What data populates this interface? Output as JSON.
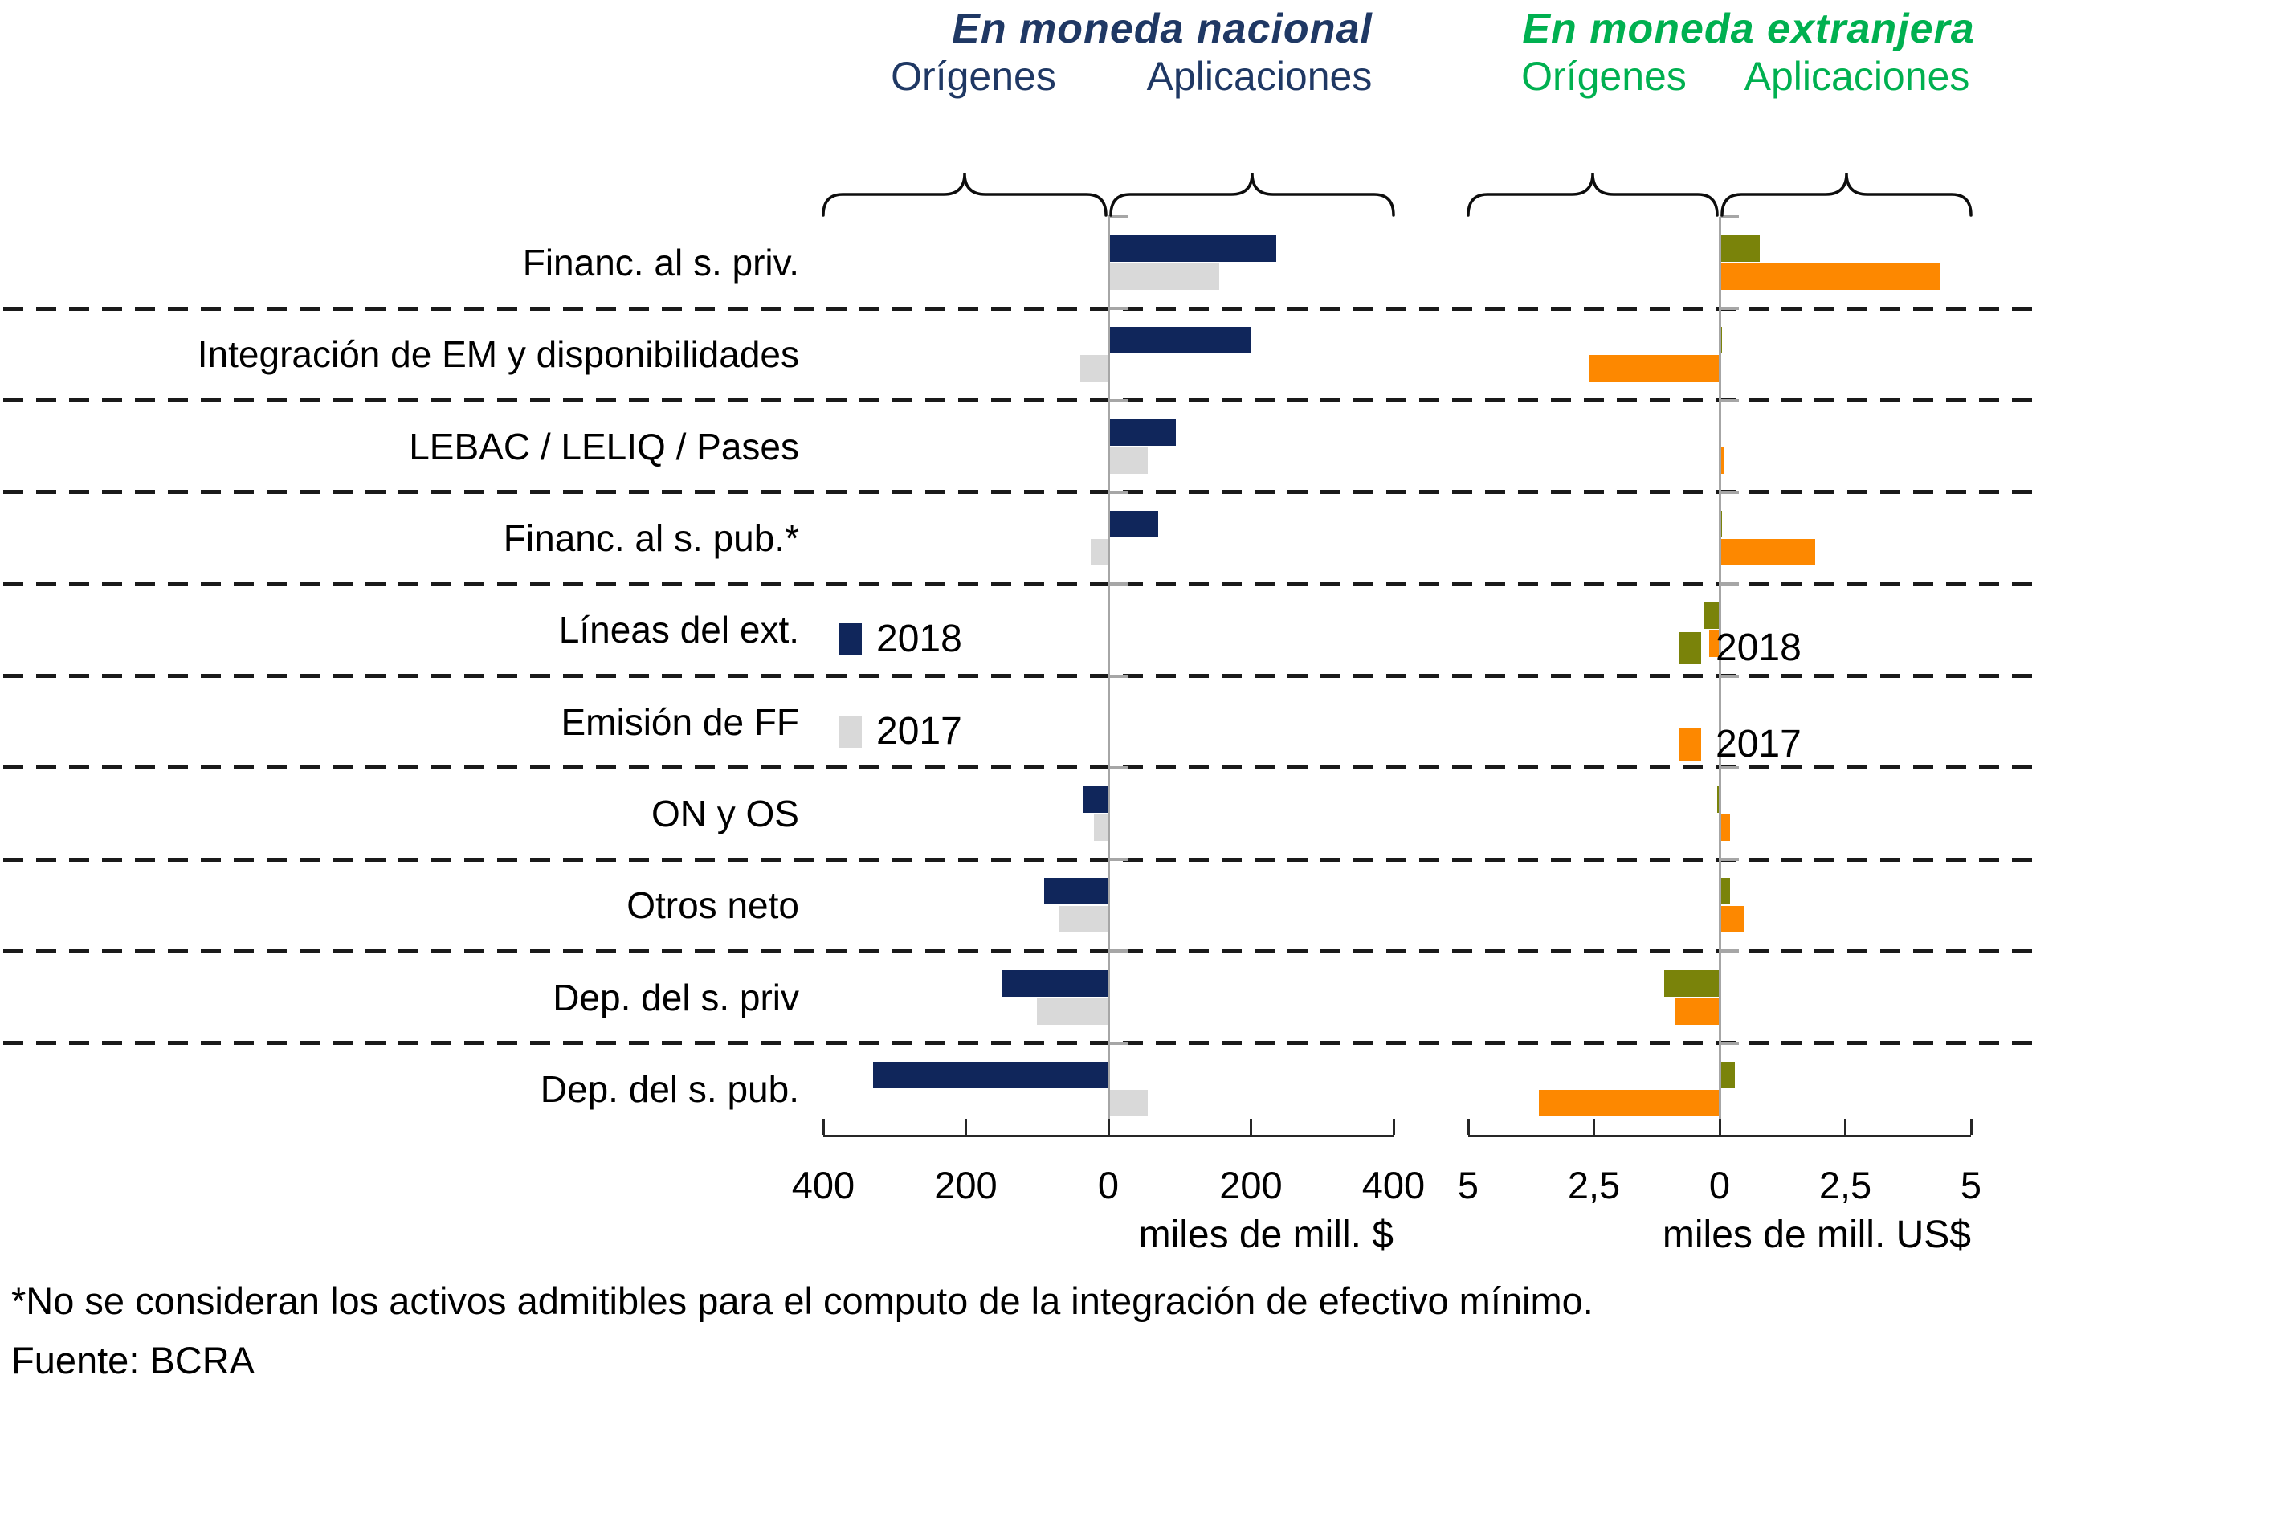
{
  "footnote": "*No se consideran los activos admitibles para el computo de la integración de efectivo mínimo.",
  "source": "Fuente: BCRA",
  "chart_data": [
    {
      "type": "bar",
      "orientation": "horizontal",
      "title": "En moneda nacional",
      "title_color": "#1F3864",
      "group_labels": [
        "Orígenes",
        "Aplicaciones"
      ],
      "axis_label": "miles de mill. $",
      "x_tick_labels": [
        "400",
        "200",
        "0",
        "200",
        "400"
      ],
      "x_tick_values": [
        -400,
        -200,
        0,
        200,
        400
      ],
      "xlim": [
        -400,
        400
      ],
      "grid": "dashed horizontal separators between categories",
      "legend_position": "inside middle-left of plot",
      "categories": [
        "Financ. al s. priv.",
        "Integración de EM y disponibilidades",
        "LEBAC / LELIQ / Pases",
        "Financ. al s. pub.*",
        "Líneas del ext.",
        "Emisión de FF",
        "ON y OS",
        "Otros neto",
        "Dep. del s. priv",
        "Dep. del s. pub."
      ],
      "series": [
        {
          "name": "2018",
          "color": "#10265B",
          "values": [
            235,
            200,
            95,
            70,
            0,
            0,
            -35,
            -90,
            -150,
            -330
          ]
        },
        {
          "name": "2017",
          "color": "#D9D9D9",
          "values": [
            155,
            -40,
            55,
            -25,
            0,
            0,
            -20,
            -70,
            -100,
            55
          ]
        }
      ]
    },
    {
      "type": "bar",
      "orientation": "horizontal",
      "title": "En moneda extranjera",
      "title_color": "#00B050",
      "group_labels": [
        "Orígenes",
        "Aplicaciones"
      ],
      "axis_label": "miles de mill. US$",
      "x_tick_labels": [
        "5",
        "2,5",
        "0",
        "2,5",
        "5"
      ],
      "x_tick_values": [
        -5,
        -2.5,
        0,
        2.5,
        5
      ],
      "xlim": [
        -5,
        5
      ],
      "grid": "dashed horizontal separators between categories",
      "legend_position": "inside middle-right of plot",
      "categories": [
        "Financ. al s. priv.",
        "Integración de EM y disponibilidades",
        "LEBAC / LELIQ / Pases",
        "Financ. al s. pub.*",
        "Líneas del ext.",
        "Emisión de FF",
        "ON y OS",
        "Otros neto",
        "Dep. del s. priv",
        "Dep. del s. pub."
      ],
      "series": [
        {
          "name": "2018",
          "color": "#7A830A",
          "values": [
            0.8,
            0.05,
            0.03,
            0.05,
            -0.3,
            0,
            -0.05,
            0.2,
            -1.1,
            0.3
          ]
        },
        {
          "name": "2017",
          "color": "#FD8800",
          "values": [
            4.4,
            -2.6,
            0.1,
            1.9,
            -0.2,
            0,
            0.2,
            0.5,
            -0.9,
            -3.6
          ]
        }
      ]
    }
  ]
}
